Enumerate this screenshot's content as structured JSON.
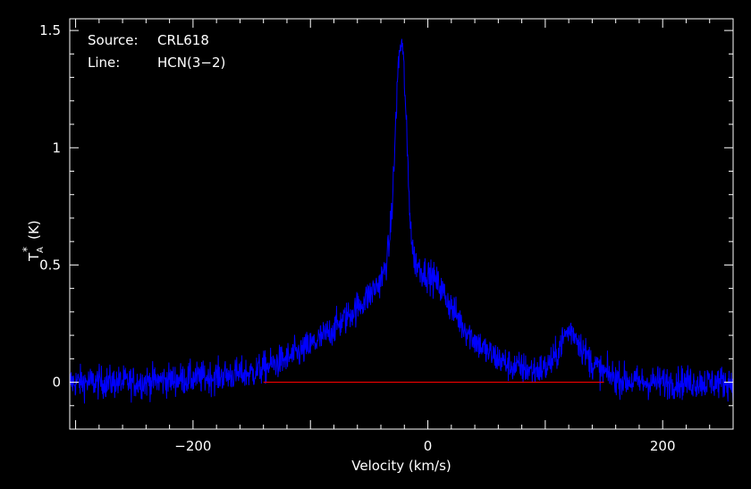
{
  "chart_data": {
    "type": "line",
    "xlabel": "Velocity (km/s)",
    "ylabel": "T",
    "ylabel_sub": "A",
    "ylabel_sup": "*",
    "ylabel_unit": "(K)",
    "xlim": [
      -305,
      260
    ],
    "ylim": [
      -0.2,
      1.55
    ],
    "x_ticks": [
      -200,
      0,
      200
    ],
    "x_tick_labels": [
      "−200",
      "0",
      "200"
    ],
    "y_ticks": [
      0,
      0.5,
      1,
      1.5
    ],
    "y_tick_labels": [
      "0",
      "0.5",
      "1",
      "1.5"
    ],
    "annotations": [
      {
        "key": "Source:",
        "value": "CRL618"
      },
      {
        "key": "Line:",
        "value": "HCN(3−2)"
      }
    ],
    "baseline": {
      "y": 0,
      "x_range": [
        -140,
        150
      ],
      "color": "#ff0000"
    },
    "series": [
      {
        "color": "#0000ff",
        "noise_rms": 0.035,
        "x": [
          -305,
          -280,
          -250,
          -220,
          -190,
          -170,
          -150,
          -135,
          -120,
          -105,
          -90,
          -75,
          -60,
          -50,
          -42,
          -37,
          -33,
          -30,
          -28,
          -26,
          -24,
          -22,
          -20,
          -18,
          -16,
          -14,
          -12,
          -9,
          -6,
          -3,
          0,
          5,
          10,
          20,
          30,
          40,
          50,
          60,
          70,
          80,
          90,
          100,
          108,
          113,
          118,
          122,
          126,
          132,
          140,
          150,
          165,
          180,
          200,
          230,
          260
        ],
        "y": [
          0.0,
          0.0,
          0.0,
          0.01,
          0.02,
          0.03,
          0.04,
          0.07,
          0.1,
          0.14,
          0.19,
          0.25,
          0.32,
          0.37,
          0.42,
          0.47,
          0.58,
          0.78,
          1.02,
          1.28,
          1.42,
          1.45,
          1.3,
          1.05,
          0.8,
          0.62,
          0.53,
          0.5,
          0.48,
          0.47,
          0.46,
          0.44,
          0.41,
          0.32,
          0.24,
          0.18,
          0.13,
          0.1,
          0.07,
          0.06,
          0.05,
          0.06,
          0.1,
          0.16,
          0.21,
          0.22,
          0.2,
          0.14,
          0.08,
          0.04,
          0.01,
          0.0,
          0.0,
          0.0,
          0.0
        ]
      }
    ]
  }
}
